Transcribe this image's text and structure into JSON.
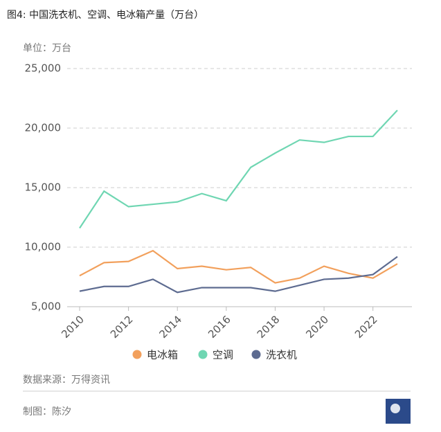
{
  "chart_data": {
    "type": "line",
    "title": "图4: 中国洗衣机、空调、电冰箱产量（万台）",
    "y_label": "单位：万台",
    "x": [
      2010,
      2011,
      2012,
      2013,
      2014,
      2015,
      2016,
      2017,
      2018,
      2019,
      2020,
      2021,
      2022,
      2023
    ],
    "series": [
      {
        "name": "电冰箱",
        "color": "#f2a05c",
        "values": [
          7600,
          8700,
          8800,
          9700,
          8200,
          8400,
          8100,
          8300,
          7000,
          7400,
          8400,
          7800,
          7400,
          8600
        ]
      },
      {
        "name": "空调",
        "color": "#6fd6b2",
        "values": [
          11600,
          14700,
          13400,
          13600,
          13800,
          14500,
          13900,
          16700,
          17900,
          19000,
          18800,
          19300,
          19300,
          21500
        ]
      },
      {
        "name": "洗衣机",
        "color": "#5d6b90",
        "values": [
          6300,
          6700,
          6700,
          7300,
          6200,
          6600,
          6600,
          6600,
          6300,
          6800,
          7300,
          7400,
          7700,
          9200
        ]
      }
    ],
    "xlim": [
      2010,
      2023
    ],
    "xticks": [
      2010,
      2012,
      2014,
      2016,
      2018,
      2020,
      2022
    ],
    "ylim": [
      5000,
      25000
    ],
    "yticks": [
      {
        "value": 5000,
        "label": "5,000"
      },
      {
        "value": 10000,
        "label": "10,000"
      },
      {
        "value": 15000,
        "label": "15,000"
      },
      {
        "value": 20000,
        "label": "20,000"
      },
      {
        "value": 25000,
        "label": "25,000"
      }
    ],
    "grid": true,
    "legend": "bottom"
  },
  "footer": {
    "source": "数据来源：万得资讯",
    "author": "制图：陈汐"
  }
}
